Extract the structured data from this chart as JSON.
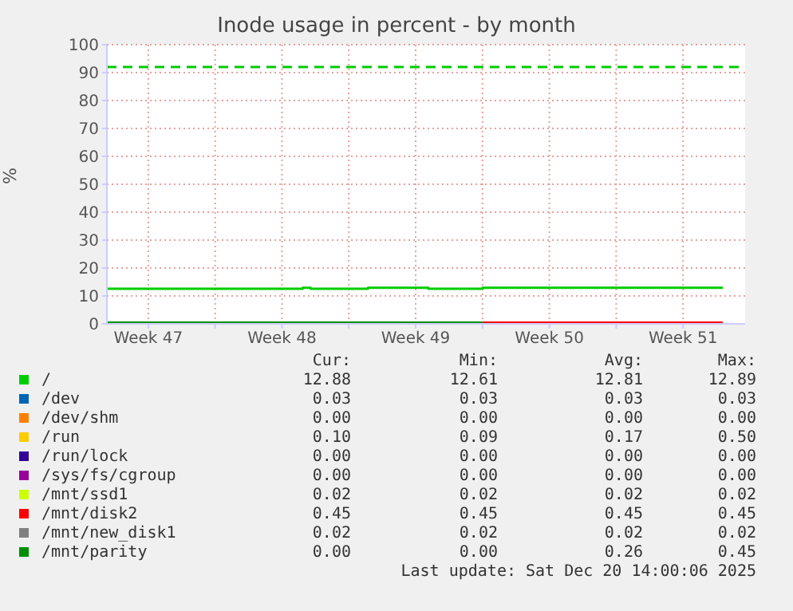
{
  "chart_data": {
    "type": "step",
    "title": "Inode usage in percent - by month",
    "ylabel": "%",
    "xlim": [
      "2025-11-18T08:00",
      "2025-12-21T18:00"
    ],
    "xticks": [
      {
        "value": "2025-11-20T12:00",
        "label": "Week 47"
      },
      {
        "value": "2025-11-24",
        "label": null
      },
      {
        "value": "2025-11-27T12:00",
        "label": "Week 48"
      },
      {
        "value": "2025-12-01",
        "label": null
      },
      {
        "value": "2025-12-04T12:00",
        "label": "Week 49"
      },
      {
        "value": "2025-12-08",
        "label": null
      },
      {
        "value": "2025-12-11T12:00",
        "label": "Week 50"
      },
      {
        "value": "2025-12-15",
        "label": null
      },
      {
        "value": "2025-12-18T12:00",
        "label": "Week 51"
      }
    ],
    "ylim": [
      0,
      100
    ],
    "yticks": [
      0,
      10,
      20,
      30,
      40,
      50,
      60,
      70,
      80,
      90,
      100
    ],
    "grid": true,
    "legend": "bottom",
    "ref_lines": [
      {
        "axis": "y",
        "value": 92,
        "color": "#00cc00",
        "line_style": "dashed"
      }
    ],
    "series": [
      {
        "name": "/",
        "color": "#00cc00",
        "x": [
          "2025-11-18T08:00",
          "2025-11-28T14:00",
          "2025-11-29T00:00",
          "2025-12-02T00:00",
          "2025-12-05T04:00",
          "2025-12-08T00:00",
          "2025-12-20T14:00"
        ],
        "values": [
          12.6,
          12.9,
          12.6,
          12.9,
          12.6,
          12.9,
          12.9
        ]
      },
      {
        "name": "/dev",
        "color": "#0066b3",
        "values": [
          null
        ]
      },
      {
        "name": "/dev/shm",
        "color": "#ff8000",
        "values": [
          null
        ]
      },
      {
        "name": "/run",
        "color": "#ffcc00",
        "values": [
          null
        ]
      },
      {
        "name": "/run/lock",
        "color": "#330099",
        "values": [
          null
        ]
      },
      {
        "name": "/sys/fs/cgroup",
        "color": "#990099",
        "values": [
          null
        ]
      },
      {
        "name": "/mnt/ssd1",
        "color": "#ccff00",
        "values": [
          null
        ]
      },
      {
        "name": "/mnt/disk2",
        "color": "#ff0000",
        "x": [
          "2025-12-08T00:00",
          "2025-12-20T14:00"
        ],
        "values": [
          0.45,
          0.45
        ]
      },
      {
        "name": "/mnt/new_disk1",
        "color": "#808080",
        "values": [
          null
        ]
      },
      {
        "name": "/mnt/parity",
        "color": "#008f00",
        "x": [
          "2025-11-18T08:00",
          "2025-12-08T00:00"
        ],
        "values": [
          0.45,
          0.45
        ]
      }
    ],
    "annotations": [
      "Cur:",
      "Min:",
      "Avg:",
      "Max:",
      "12.88",
      "12.61",
      "12.81",
      "12.89",
      "0.03",
      "0.03",
      "0.03",
      "0.03",
      "0.00",
      "0.00",
      "0.00",
      "0.00",
      "0.10",
      "0.09",
      "0.17",
      "0.50",
      "0.00",
      "0.00",
      "0.00",
      "0.00",
      "0.00",
      "0.00",
      "0.00",
      "0.00",
      "0.02",
      "0.02",
      "0.02",
      "0.02",
      "0.45",
      "0.45",
      "0.45",
      "0.45",
      "0.02",
      "0.02",
      "0.02",
      "0.02",
      "0.00",
      "0.00",
      "0.26",
      "0.45",
      "Last update: Sat Dec 20 14:00:06 2025"
    ]
  }
}
